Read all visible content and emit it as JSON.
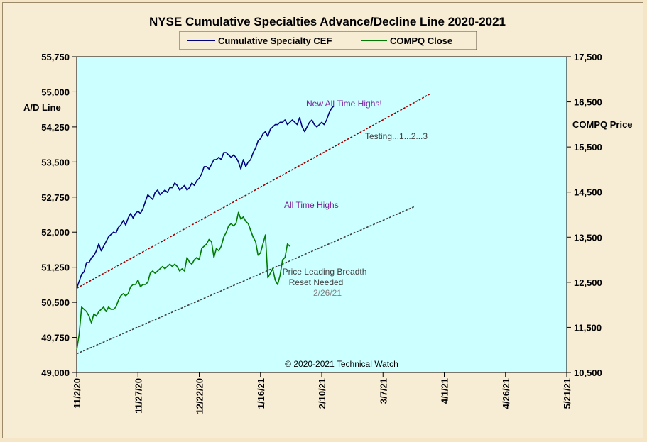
{
  "chart_data": {
    "type": "line",
    "title": "NYSE Cumulative  Specialties  Advance/Decline  Line  2020-2021",
    "legend": {
      "placement": "top-center",
      "entries": [
        {
          "label": "Cumulative Specialty CEF",
          "color": "#000080"
        },
        {
          "label": "COMPQ Close",
          "color": "#007a00"
        }
      ]
    },
    "y_left": {
      "label": "A/D Line",
      "range": [
        49000,
        55750
      ],
      "ticks": [
        "55,750",
        "55,000",
        "54,250",
        "53,500",
        "52,750",
        "52,000",
        "51,250",
        "50,500",
        "49,750",
        "49,000"
      ]
    },
    "y_right": {
      "label": "COMPQ Price",
      "range": [
        10500,
        17500
      ],
      "ticks": [
        "17,500",
        "16,500",
        "15,500",
        "14,500",
        "13,500",
        "12,500",
        "11,500",
        "10,500"
      ]
    },
    "x_axis": {
      "range_days": [
        0,
        200
      ],
      "ticks": [
        {
          "label": "11/2/20",
          "day": 0
        },
        {
          "label": "11/27/20",
          "day": 25
        },
        {
          "label": "12/22/20",
          "day": 50
        },
        {
          "label": "1/16/21",
          "day": 75
        },
        {
          "label": "2/10/21",
          "day": 100
        },
        {
          "label": "3/7/21",
          "day": 125
        },
        {
          "label": "4/1/21",
          "day": 150
        },
        {
          "label": "4/26/21",
          "day": 175
        },
        {
          "label": "5/21/21",
          "day": 200
        }
      ]
    },
    "grid": false,
    "series": [
      {
        "name": "Cumulative Specialty CEF",
        "axis": "left",
        "color": "#000080",
        "points": [
          [
            0,
            50800
          ],
          [
            1,
            50950
          ],
          [
            2,
            51100
          ],
          [
            3,
            51150
          ],
          [
            4,
            51350
          ],
          [
            5,
            51350
          ],
          [
            6,
            51450
          ],
          [
            7,
            51500
          ],
          [
            8,
            51600
          ],
          [
            9,
            51750
          ],
          [
            10,
            51600
          ],
          [
            11,
            51700
          ],
          [
            12,
            51800
          ],
          [
            13,
            51900
          ],
          [
            14,
            51950
          ],
          [
            15,
            52000
          ],
          [
            16,
            51980
          ],
          [
            17,
            52100
          ],
          [
            18,
            52150
          ],
          [
            19,
            52250
          ],
          [
            20,
            52150
          ],
          [
            21,
            52300
          ],
          [
            22,
            52400
          ],
          [
            23,
            52300
          ],
          [
            24,
            52400
          ],
          [
            25,
            52450
          ],
          [
            26,
            52400
          ],
          [
            27,
            52500
          ],
          [
            28,
            52650
          ],
          [
            29,
            52800
          ],
          [
            30,
            52750
          ],
          [
            31,
            52700
          ],
          [
            32,
            52850
          ],
          [
            33,
            52900
          ],
          [
            34,
            52800
          ],
          [
            35,
            52850
          ],
          [
            36,
            52900
          ],
          [
            37,
            52850
          ],
          [
            38,
            52950
          ],
          [
            39,
            52950
          ],
          [
            40,
            53050
          ],
          [
            41,
            53000
          ],
          [
            42,
            52900
          ],
          [
            43,
            52950
          ],
          [
            44,
            53000
          ],
          [
            45,
            52900
          ],
          [
            46,
            52950
          ],
          [
            47,
            53050
          ],
          [
            48,
            53000
          ],
          [
            49,
            53100
          ],
          [
            50,
            53150
          ],
          [
            51,
            53250
          ],
          [
            52,
            53400
          ],
          [
            53,
            53400
          ],
          [
            54,
            53350
          ],
          [
            55,
            53450
          ],
          [
            56,
            53550
          ],
          [
            57,
            53550
          ],
          [
            58,
            53600
          ],
          [
            59,
            53550
          ],
          [
            60,
            53700
          ],
          [
            61,
            53700
          ],
          [
            62,
            53650
          ],
          [
            63,
            53600
          ],
          [
            64,
            53650
          ],
          [
            65,
            53600
          ],
          [
            66,
            53500
          ],
          [
            67,
            53350
          ],
          [
            68,
            53550
          ],
          [
            69,
            53400
          ],
          [
            70,
            53500
          ],
          [
            71,
            53550
          ],
          [
            72,
            53700
          ],
          [
            73,
            53800
          ],
          [
            74,
            53950
          ],
          [
            75,
            54000
          ],
          [
            76,
            54100
          ],
          [
            77,
            54150
          ],
          [
            78,
            54050
          ],
          [
            79,
            54200
          ],
          [
            80,
            54250
          ],
          [
            81,
            54300
          ],
          [
            82,
            54300
          ],
          [
            83,
            54350
          ],
          [
            84,
            54350
          ],
          [
            85,
            54400
          ],
          [
            86,
            54300
          ],
          [
            87,
            54350
          ],
          [
            88,
            54400
          ],
          [
            89,
            54350
          ],
          [
            90,
            54300
          ],
          [
            91,
            54450
          ],
          [
            92,
            54250
          ],
          [
            93,
            54150
          ],
          [
            94,
            54250
          ],
          [
            95,
            54350
          ],
          [
            96,
            54400
          ],
          [
            97,
            54300
          ],
          [
            98,
            54250
          ],
          [
            99,
            54300
          ],
          [
            100,
            54350
          ],
          [
            101,
            54300
          ],
          [
            102,
            54400
          ],
          [
            103,
            54550
          ],
          [
            104,
            54650
          ],
          [
            105,
            54700
          ]
        ]
      },
      {
        "name": "COMPQ Close",
        "axis": "right",
        "color": "#007a00",
        "points": [
          [
            0,
            11000
          ],
          [
            1,
            11350
          ],
          [
            2,
            11950
          ],
          [
            3,
            11900
          ],
          [
            4,
            11850
          ],
          [
            5,
            11750
          ],
          [
            6,
            11600
          ],
          [
            7,
            11800
          ],
          [
            8,
            11750
          ],
          [
            9,
            11850
          ],
          [
            10,
            11900
          ],
          [
            11,
            11950
          ],
          [
            12,
            11850
          ],
          [
            13,
            11950
          ],
          [
            14,
            11900
          ],
          [
            15,
            11900
          ],
          [
            16,
            11950
          ],
          [
            17,
            12100
          ],
          [
            18,
            12200
          ],
          [
            19,
            12250
          ],
          [
            20,
            12200
          ],
          [
            21,
            12250
          ],
          [
            22,
            12400
          ],
          [
            23,
            12450
          ],
          [
            24,
            12450
          ],
          [
            25,
            12550
          ],
          [
            26,
            12400
          ],
          [
            27,
            12450
          ],
          [
            28,
            12450
          ],
          [
            29,
            12500
          ],
          [
            30,
            12700
          ],
          [
            31,
            12750
          ],
          [
            32,
            12700
          ],
          [
            33,
            12750
          ],
          [
            34,
            12800
          ],
          [
            35,
            12850
          ],
          [
            36,
            12800
          ],
          [
            37,
            12850
          ],
          [
            38,
            12900
          ],
          [
            39,
            12850
          ],
          [
            40,
            12900
          ],
          [
            41,
            12850
          ],
          [
            42,
            12750
          ],
          [
            43,
            12800
          ],
          [
            44,
            12750
          ],
          [
            45,
            13050
          ],
          [
            46,
            12950
          ],
          [
            47,
            12900
          ],
          [
            48,
            13000
          ],
          [
            49,
            13050
          ],
          [
            50,
            13000
          ],
          [
            51,
            13250
          ],
          [
            52,
            13300
          ],
          [
            53,
            13350
          ],
          [
            54,
            13450
          ],
          [
            55,
            13400
          ],
          [
            56,
            13050
          ],
          [
            57,
            13250
          ],
          [
            58,
            13200
          ],
          [
            59,
            13300
          ],
          [
            60,
            13500
          ],
          [
            61,
            13600
          ],
          [
            62,
            13750
          ],
          [
            63,
            13800
          ],
          [
            64,
            13750
          ],
          [
            65,
            13800
          ],
          [
            66,
            14050
          ],
          [
            67,
            13900
          ],
          [
            68,
            13950
          ],
          [
            69,
            13850
          ],
          [
            70,
            13800
          ],
          [
            71,
            13650
          ],
          [
            72,
            13500
          ],
          [
            73,
            13400
          ],
          [
            74,
            13100
          ],
          [
            75,
            13150
          ],
          [
            76,
            13350
          ],
          [
            77,
            13550
          ],
          [
            78,
            12600
          ],
          [
            79,
            12700
          ],
          [
            80,
            12800
          ],
          [
            81,
            12550
          ],
          [
            82,
            12450
          ],
          [
            83,
            12650
          ],
          [
            84,
            13000
          ],
          [
            85,
            13050
          ],
          [
            86,
            13350
          ],
          [
            87,
            13300
          ]
        ]
      }
    ],
    "trendlines": [
      {
        "axis": "left",
        "style": "dashed",
        "color": "#9a0000",
        "from": [
          0,
          50800
        ],
        "to": [
          144,
          54950
        ]
      },
      {
        "axis": "left",
        "style": "dashed",
        "color": "#404040",
        "from": [
          0,
          49400
        ],
        "to": [
          138,
          52550
        ]
      }
    ],
    "annotations": [
      {
        "text": "New All Time Highs!",
        "style": "purple"
      },
      {
        "text": "Testing...1...2...3",
        "style": "gray"
      },
      {
        "text": "All Time Highs",
        "style": "purple"
      },
      {
        "text": "Price Leading Breadth",
        "style": "gray"
      },
      {
        "text": "Reset Needed",
        "style": "gray"
      },
      {
        "text": "2/26/21",
        "style": "lightgray"
      }
    ],
    "copyright": "© 2020-2021  Technical  Watch",
    "plot_background": "#ccffff"
  }
}
